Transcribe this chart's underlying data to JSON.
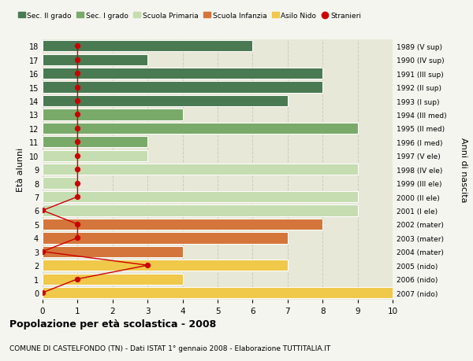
{
  "ages": [
    18,
    17,
    16,
    15,
    14,
    13,
    12,
    11,
    10,
    9,
    8,
    7,
    6,
    5,
    4,
    3,
    2,
    1,
    0
  ],
  "years": [
    "1989 (V sup)",
    "1990 (IV sup)",
    "1991 (III sup)",
    "1992 (II sup)",
    "1993 (I sup)",
    "1994 (III med)",
    "1995 (II med)",
    "1996 (I med)",
    "1997 (V ele)",
    "1998 (IV ele)",
    "1999 (III ele)",
    "2000 (II ele)",
    "2001 (I ele)",
    "2002 (mater)",
    "2003 (mater)",
    "2004 (mater)",
    "2005 (nido)",
    "2006 (nido)",
    "2007 (nido)"
  ],
  "bar_values": [
    6,
    3,
    8,
    8,
    7,
    4,
    9,
    3,
    3,
    9,
    1,
    9,
    9,
    8,
    7,
    4,
    7,
    4,
    10
  ],
  "bar_colors": [
    "#4a7a52",
    "#4a7a52",
    "#4a7a52",
    "#4a7a52",
    "#4a7a52",
    "#7aaa6a",
    "#7aaa6a",
    "#7aaa6a",
    "#c5ddb0",
    "#c5ddb0",
    "#c5ddb0",
    "#c5ddb0",
    "#c5ddb0",
    "#d4763b",
    "#d4763b",
    "#d4763b",
    "#f0c84a",
    "#f0c84a",
    "#f0c84a"
  ],
  "stranieri_values": [
    1,
    1,
    1,
    1,
    1,
    1,
    1,
    1,
    1,
    1,
    1,
    1,
    0,
    1,
    1,
    0,
    3,
    1,
    0
  ],
  "legend_labels": [
    "Sec. II grado",
    "Sec. I grado",
    "Scuola Primaria",
    "Scuola Infanzia",
    "Asilo Nido",
    "Stranieri"
  ],
  "legend_colors": [
    "#4a7a52",
    "#7aaa6a",
    "#c5ddb0",
    "#d4763b",
    "#f0c84a",
    "#cc0000"
  ],
  "ylabel": "Età alunni",
  "ylabel2": "Anni di nascita",
  "title": "Popolazione per età scolastica - 2008",
  "subtitle": "COMUNE DI CASTELFONDO (TN) - Dati ISTAT 1° gennaio 2008 - Elaborazione TUTTITALIA.IT",
  "xlim": [
    0,
    10
  ],
  "bg_color": "#f5f5f0",
  "plot_bg_color": "#e8e8d8",
  "stranieri_color": "#cc0000",
  "grid_color": "#ccccbb"
}
